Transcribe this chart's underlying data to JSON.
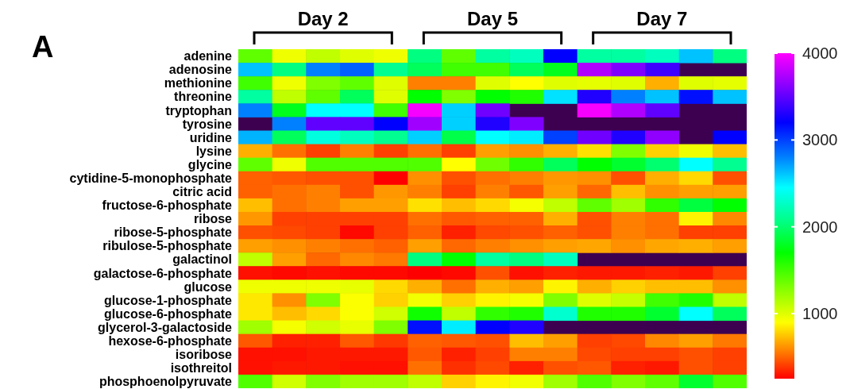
{
  "chart_data": {
    "type": "heatmap",
    "title": "A",
    "annotations": [
      "Day 2",
      "Day 5",
      "Day 7"
    ],
    "categories": [
      null,
      null,
      null,
      null,
      null,
      null,
      null,
      null,
      null,
      null,
      null,
      null,
      null,
      null,
      null
    ],
    "y_categories": [
      "adenine",
      "adenosine",
      "methionine",
      "threonine",
      "tryptophan",
      "tyrosine",
      "uridine",
      "lysine",
      "glycine",
      "cytidine-5-monophosphate",
      "citric acid",
      "fructose-6-phosphate",
      "ribose",
      "ribose-5-phosphate",
      "ribulose-5-phosphate",
      "galactinol",
      "galactose-6-phosphate",
      "glucose",
      "glucose-1-phosphate",
      "glucose-6-phosphate",
      "glycerol-3-galactoside",
      "hexose-6-phosphate",
      "isoribose",
      "isothreitol",
      "phosphoenolpyruvate"
    ],
    "cells": [
      [
        1400,
        950,
        1100,
        1000,
        950,
        2050,
        1400,
        2150,
        2250,
        3200,
        2150,
        2150,
        2250,
        2620,
        2050
      ],
      [
        2620,
        2050,
        2800,
        2900,
        2100,
        1950,
        1500,
        1500,
        1950,
        1780,
        3750,
        3600,
        3400,
        null,
        null
      ],
      [
        1500,
        950,
        1300,
        1400,
        1000,
        570,
        570,
        1000,
        900,
        1000,
        980,
        1000,
        690,
        1000,
        980
      ],
      [
        2150,
        1100,
        1400,
        1950,
        1000,
        1700,
        1300,
        1700,
        1600,
        2530,
        3300,
        2800,
        2620,
        3150,
        2620
      ],
      [
        2800,
        1780,
        2450,
        2450,
        1500,
        3970,
        2580,
        3550,
        null,
        null,
        3970,
        3750,
        3500,
        null,
        null
      ],
      [
        null,
        2800,
        3500,
        3500,
        3200,
        3700,
        2580,
        3300,
        3600,
        null,
        null,
        null,
        null,
        null,
        null
      ],
      [
        2660,
        1950,
        2350,
        2250,
        2100,
        2580,
        1900,
        2450,
        2500,
        3000,
        3550,
        3300,
        3650,
        null,
        3200
      ],
      [
        690,
        530,
        410,
        570,
        410,
        530,
        410,
        650,
        610,
        690,
        820,
        1300,
        780,
        950,
        730
      ],
      [
        1400,
        950,
        1450,
        1450,
        1450,
        1450,
        900,
        1350,
        1550,
        1950,
        1700,
        1830,
        2000,
        2450,
        2100
      ],
      [
        490,
        470,
        450,
        450,
        250,
        610,
        450,
        530,
        570,
        630,
        610,
        450,
        690,
        800,
        450
      ],
      [
        490,
        530,
        570,
        450,
        630,
        570,
        410,
        570,
        470,
        650,
        510,
        730,
        610,
        650,
        650
      ],
      [
        730,
        530,
        570,
        650,
        650,
        820,
        730,
        800,
        930,
        1100,
        1400,
        1200,
        1550,
        1870,
        1700
      ],
      [
        630,
        410,
        410,
        410,
        410,
        530,
        470,
        490,
        490,
        690,
        450,
        570,
        530,
        870,
        590
      ],
      [
        450,
        430,
        410,
        270,
        410,
        490,
        330,
        430,
        450,
        490,
        450,
        570,
        530,
        410,
        410
      ],
      [
        650,
        610,
        570,
        530,
        490,
        650,
        510,
        570,
        610,
        650,
        670,
        610,
        670,
        690,
        650
      ],
      [
        1100,
        650,
        510,
        590,
        550,
        2050,
        1700,
        2150,
        2050,
        2250,
        null,
        null,
        null,
        null,
        null
      ],
      [
        290,
        270,
        290,
        270,
        270,
        250,
        270,
        450,
        290,
        330,
        310,
        310,
        330,
        310,
        410
      ],
      [
        950,
        950,
        950,
        970,
        800,
        690,
        530,
        690,
        650,
        870,
        690,
        780,
        730,
        730,
        610
      ],
      [
        840,
        610,
        1300,
        910,
        780,
        940,
        780,
        870,
        930,
        1300,
        1000,
        1080,
        1500,
        1600,
        1100
      ],
      [
        840,
        730,
        800,
        910,
        1050,
        1650,
        1100,
        1550,
        1600,
        2300,
        1600,
        1600,
        1830,
        2450,
        1950
      ],
      [
        1200,
        930,
        1050,
        970,
        1300,
        3150,
        2500,
        3200,
        3300,
        null,
        null,
        null,
        null,
        null,
        null
      ],
      [
        470,
        330,
        330,
        470,
        390,
        490,
        470,
        450,
        730,
        650,
        410,
        430,
        590,
        650,
        550
      ],
      [
        290,
        290,
        310,
        310,
        310,
        470,
        330,
        410,
        570,
        570,
        430,
        410,
        410,
        450,
        410
      ],
      [
        290,
        310,
        310,
        290,
        290,
        530,
        370,
        430,
        330,
        450,
        470,
        330,
        310,
        450,
        410
      ],
      [
        1450,
        1050,
        1300,
        1200,
        1200,
        1100,
        780,
        870,
        940,
        1200,
        1450,
        1300,
        1400,
        1830,
        1450
      ]
    ],
    "clim": [
      250,
      4000
    ],
    "cticks": [
      1000,
      2000,
      3000,
      4000
    ]
  }
}
